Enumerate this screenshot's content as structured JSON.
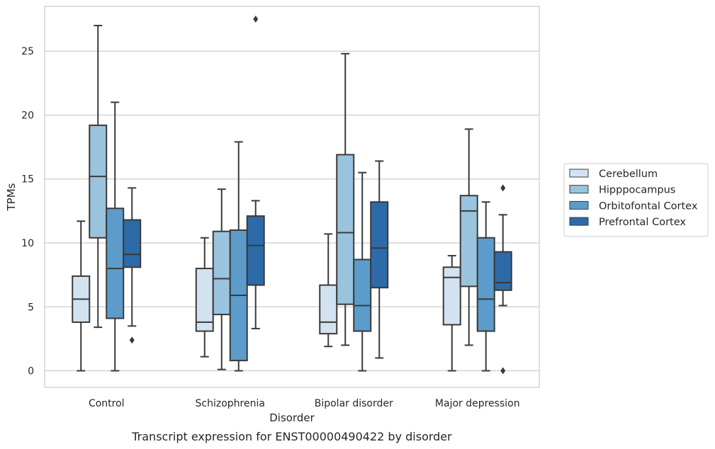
{
  "chart_data": {
    "type": "boxplot",
    "title": "",
    "caption": "Transcript expression for ENST00000490422 by disorder",
    "xlabel": "Disorder",
    "ylabel": "TPMs",
    "ylim": [
      -1.3,
      28.5
    ],
    "yticks": [
      0,
      5,
      10,
      15,
      20,
      25
    ],
    "ytick_labels": [
      "0",
      "5",
      "10",
      "15",
      "20",
      "25"
    ],
    "grid": "horizontal",
    "legend_position": "right",
    "categories": [
      "Control",
      "Schizophrenia",
      "Bipolar disorder",
      "Major depression"
    ],
    "series": [
      {
        "name": "Cerebellum",
        "color": "#d2e2f1",
        "boxes": [
          {
            "whislo": 0,
            "q1": 3.8,
            "med": 5.6,
            "q3": 7.4,
            "whishi": 11.7,
            "fliers": []
          },
          {
            "whislo": 1.1,
            "q1": 3.1,
            "med": 3.8,
            "q3": 8.0,
            "whishi": 10.4,
            "fliers": []
          },
          {
            "whislo": 1.9,
            "q1": 2.9,
            "med": 3.8,
            "q3": 6.7,
            "whishi": 10.7,
            "fliers": []
          },
          {
            "whislo": 0,
            "q1": 3.6,
            "med": 7.3,
            "q3": 8.1,
            "whishi": 9.0,
            "fliers": []
          }
        ]
      },
      {
        "name": "Hipppocampus",
        "color": "#9ac3dd",
        "boxes": [
          {
            "whislo": 3.4,
            "q1": 10.4,
            "med": 15.2,
            "q3": 19.2,
            "whishi": 27.0,
            "fliers": []
          },
          {
            "whislo": 0.1,
            "q1": 4.4,
            "med": 7.2,
            "q3": 10.9,
            "whishi": 14.2,
            "fliers": []
          },
          {
            "whislo": 2.0,
            "q1": 5.2,
            "med": 10.8,
            "q3": 16.9,
            "whishi": 24.8,
            "fliers": []
          },
          {
            "whislo": 2.0,
            "q1": 6.6,
            "med": 12.5,
            "q3": 13.7,
            "whishi": 18.9,
            "fliers": []
          }
        ]
      },
      {
        "name": "Orbitofontal Cortex",
        "color": "#5b9ccb",
        "boxes": [
          {
            "whislo": 0,
            "q1": 4.1,
            "med": 8.0,
            "q3": 12.7,
            "whishi": 21.0,
            "fliers": []
          },
          {
            "whislo": 0,
            "q1": 0.8,
            "med": 5.9,
            "q3": 11.0,
            "whishi": 17.9,
            "fliers": []
          },
          {
            "whislo": 0,
            "q1": 3.1,
            "med": 5.1,
            "q3": 8.7,
            "whishi": 15.5,
            "fliers": []
          },
          {
            "whislo": 0,
            "q1": 3.1,
            "med": 5.6,
            "q3": 10.4,
            "whishi": 13.2,
            "fliers": []
          }
        ]
      },
      {
        "name": "Prefrontal Cortex",
        "color": "#2d6aa8",
        "boxes": [
          {
            "whislo": 3.5,
            "q1": 8.1,
            "med": 9.1,
            "q3": 11.8,
            "whishi": 14.3,
            "fliers": [
              2.4
            ]
          },
          {
            "whislo": 3.3,
            "q1": 6.7,
            "med": 9.8,
            "q3": 12.1,
            "whishi": 13.3,
            "fliers": [
              27.5
            ]
          },
          {
            "whislo": 1.0,
            "q1": 6.5,
            "med": 9.6,
            "q3": 13.2,
            "whishi": 16.4,
            "fliers": []
          },
          {
            "whislo": 5.1,
            "q1": 6.3,
            "med": 6.9,
            "q3": 9.3,
            "whishi": 12.2,
            "fliers": [
              14.3,
              0
            ]
          }
        ]
      }
    ]
  }
}
